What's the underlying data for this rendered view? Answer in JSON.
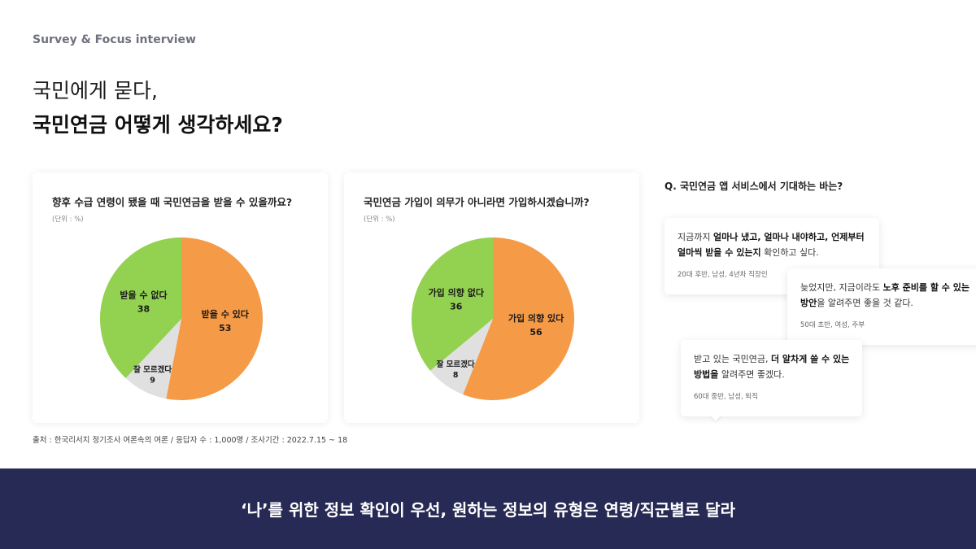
{
  "header": {
    "eyebrow": "Survey & Focus interview",
    "title_line1": "국민에게 묻다,",
    "title_line2": "국민연금 어떻게 생각하세요?"
  },
  "cards": [
    {
      "title": "향후 수급 연령이 됐을 때 국민연금을 받을 수 있을까요?",
      "unit": "(단위 : %)"
    },
    {
      "title": "국민연금 가입이 의무가 아니라면 가입하시겠습니까?",
      "unit": "(단위 : %)"
    }
  ],
  "chart_data": [
    {
      "type": "pie",
      "title": "향후 수급 연령이 됐을 때 국민연금을 받을 수 있을까요?",
      "unit": "(단위 : %)",
      "categories": [
        "받을 수 있다",
        "잘 모르겠다",
        "받을 수 없다"
      ],
      "values": [
        53,
        9,
        38
      ],
      "colors": [
        "#f59a46",
        "#e0e0e0",
        "#93d150"
      ]
    },
    {
      "type": "pie",
      "title": "국민연금 가입이 의무가 아니라면 가입하시겠습니까?",
      "unit": "(단위 : %)",
      "categories": [
        "가입 의향 있다",
        "잘 모르겠다",
        "가입 의향 없다"
      ],
      "values": [
        56,
        8,
        36
      ],
      "colors": [
        "#f59a46",
        "#e0e0e0",
        "#93d150"
      ]
    }
  ],
  "source": "출처 : 한국리서치 정기조사 여론속의 여론 / 응답자 수 : 1,000명 / 조사기간 : 2022.7.15 ~ 18",
  "question": {
    "title": "Q. 국민연금 앱 서비스에서 기대하는 바는?",
    "bubbles": [
      {
        "l1_pre": "지금까지 ",
        "l1_bold": "얼마나 냈고, 얼마나 내야하고, 언제부터",
        "l1_post": "",
        "l2_pre": "",
        "l2_bold": "얼마씩 받을 수 있는지",
        "l2_post": " 확인하고 싶다.",
        "author": "20대 후반, 남성, 4년차 직장인"
      },
      {
        "l1_pre": "늦었지만, 지금이라도 ",
        "l1_bold": "노후 준비를 할 수 있는",
        "l1_post": "",
        "l2_pre": "",
        "l2_bold": "방안",
        "l2_post": "을 알려주면 좋을 것 같다.",
        "author": "50대 초반, 여성, 주부"
      },
      {
        "l1_pre": "받고 있는 국민연금, ",
        "l1_bold": "더 알차게 쓸 수 있는",
        "l1_post": "",
        "l2_pre": "",
        "l2_bold": "방법을",
        "l2_post": " 알려주면 좋겠다.",
        "author": "60대 중반, 남성, 퇴직"
      }
    ]
  },
  "banner": {
    "text": "‘나’를 위한 정보 확인이 우선, 원하는 정보의 유형은 연령/직군별로 달라"
  }
}
